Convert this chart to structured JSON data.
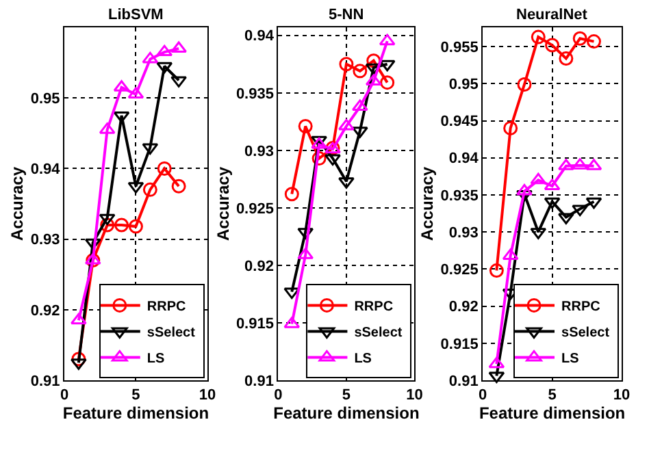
{
  "chart_data": [
    {
      "type": "line",
      "title": "LibSVM",
      "xlabel": "Feature dimension",
      "ylabel": "Accuracy",
      "x": [
        1,
        2,
        3,
        4,
        5,
        6,
        7,
        8
      ],
      "xlim": [
        0,
        10
      ],
      "xticks": [
        0,
        5,
        10
      ],
      "ylim": [
        0.91,
        0.96
      ],
      "yticks": [
        0.91,
        0.92,
        0.93,
        0.94,
        0.95
      ],
      "grid": true,
      "legend": "bottom right",
      "line_style": "solid",
      "series": [
        {
          "name": "RRPC",
          "color": "#ff0000",
          "marker": "circle",
          "values": [
            0.913,
            0.927,
            0.932,
            0.932,
            0.9318,
            0.937,
            0.94,
            0.9375
          ]
        },
        {
          "name": "sSelect",
          "color": "#000000",
          "marker": "triangle-down",
          "values": [
            0.9125,
            0.9295,
            0.933,
            0.9475,
            0.9375,
            0.943,
            0.9545,
            0.9525
          ]
        },
        {
          "name": "LS",
          "color": "#ff00ff",
          "marker": "triangle",
          "values": [
            0.9185,
            0.927,
            0.9455,
            0.9515,
            0.9505,
            0.9555,
            0.9565,
            0.957
          ]
        }
      ]
    },
    {
      "type": "line",
      "title": "5-NN",
      "xlabel": "Feature dimension",
      "ylabel": "Accuracy",
      "x": [
        1,
        2,
        3,
        4,
        5,
        6,
        7,
        8
      ],
      "xlim": [
        0,
        10
      ],
      "xticks": [
        0,
        5,
        10
      ],
      "ylim": [
        0.91,
        0.9407
      ],
      "yticks": [
        0.91,
        0.915,
        0.92,
        0.925,
        0.93,
        0.935,
        0.94
      ],
      "grid": true,
      "legend": "bottom right",
      "line_style": "solid",
      "series": [
        {
          "name": "RRPC",
          "color": "#ff0000",
          "marker": "circle",
          "values": [
            0.9262,
            0.9321,
            0.9293,
            0.9302,
            0.9375,
            0.9369,
            0.9378,
            0.9359
          ]
        },
        {
          "name": "sSelect",
          "color": "#000000",
          "marker": "triangle-down",
          "values": [
            0.9177,
            0.9229,
            0.9309,
            0.9293,
            0.9273,
            0.9317,
            0.9372,
            0.9375
          ]
        },
        {
          "name": "LS",
          "color": "#ff00ff",
          "marker": "triangle",
          "values": [
            0.9149,
            0.9209,
            0.9305,
            0.9301,
            0.9321,
            0.9338,
            0.936,
            0.9395
          ]
        }
      ]
    },
    {
      "type": "line",
      "title": "NeuralNet",
      "xlabel": "Feature dimension",
      "ylabel": "Accuracy",
      "x": [
        1,
        2,
        3,
        4,
        5,
        6,
        7,
        8
      ],
      "xlim": [
        0,
        10
      ],
      "xticks": [
        0,
        5,
        10
      ],
      "ylim": [
        0.91,
        0.9576
      ],
      "yticks": [
        0.91,
        0.915,
        0.92,
        0.925,
        0.93,
        0.935,
        0.94,
        0.945,
        0.95,
        0.955
      ],
      "grid": true,
      "legend": "bottom right",
      "line_style": "solid",
      "series": [
        {
          "name": "RRPC",
          "color": "#ff0000",
          "marker": "circle",
          "values": [
            0.9248,
            0.944,
            0.9499,
            0.9563,
            0.9552,
            0.9534,
            0.9561,
            0.9557
          ]
        },
        {
          "name": "sSelect",
          "color": "#000000",
          "marker": "triangle-down",
          "values": [
            0.9106,
            0.9218,
            0.9351,
            0.93,
            0.9341,
            0.932,
            0.9331,
            0.9341
          ]
        },
        {
          "name": "LS",
          "color": "#ff00ff",
          "marker": "triangle",
          "values": [
            0.9122,
            0.9268,
            0.9355,
            0.937,
            0.9362,
            0.9389,
            0.939,
            0.9389
          ]
        }
      ]
    }
  ]
}
